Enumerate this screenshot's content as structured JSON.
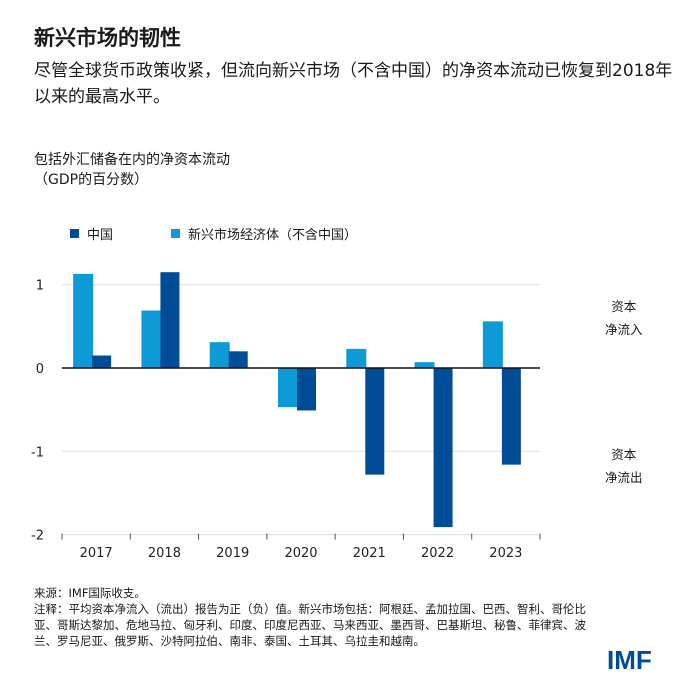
{
  "title": "新兴市场的韧性",
  "subtitle": "尽管全球货币政策收紧，但流向新兴市场（不含中国）的净资本流动已恢复到2018年以来的最高水平。",
  "colors": {
    "china": "#004c97",
    "em": "#0e9ad7"
  },
  "annotations": {
    "inflow_1": "资本",
    "inflow_2": "净流入",
    "outflow_1": "资本",
    "outflow_2": "净流出"
  },
  "footer": {
    "source": "来源：IMF国际收支。",
    "note": "注释：平均资本净流入（流出）报告为正（负）值。新兴市场包括：阿根廷、孟加拉国、巴西、智利、哥伦比亚、哥斯达黎加、危地马拉、匈牙利、印度、印度尼西亚、马来西亚、墨西哥、巴基斯坦、秘鲁、菲律宾、波兰、罗马尼亚、俄罗斯、沙特阿拉伯、南非、泰国、土耳其、乌拉圭和越南。"
  },
  "logo": "IMF",
  "chart_data": {
    "type": "bar",
    "ylabel_1": "包括外汇储备在内的净资本流动",
    "ylabel_2": "（GDP的百分数）",
    "categories": [
      "2017",
      "2018",
      "2019",
      "2020",
      "2021",
      "2022",
      "2023"
    ],
    "series": [
      {
        "name": "新兴市场经济体（不含中国）",
        "values": [
          1.13,
          0.69,
          0.31,
          -0.47,
          0.23,
          0.07,
          0.56
        ]
      },
      {
        "name": "中国",
        "values": [
          0.15,
          1.15,
          0.2,
          -0.51,
          -1.28,
          -1.91,
          -1.16
        ]
      }
    ],
    "legend_order": [
      "中国",
      "新兴市场经济体（不含中国）"
    ],
    "yticks": [
      "1",
      "0",
      "-1",
      "-2"
    ],
    "ylim": [
      -2,
      1.2
    ],
    "grid": true,
    "legend": "top-left"
  }
}
